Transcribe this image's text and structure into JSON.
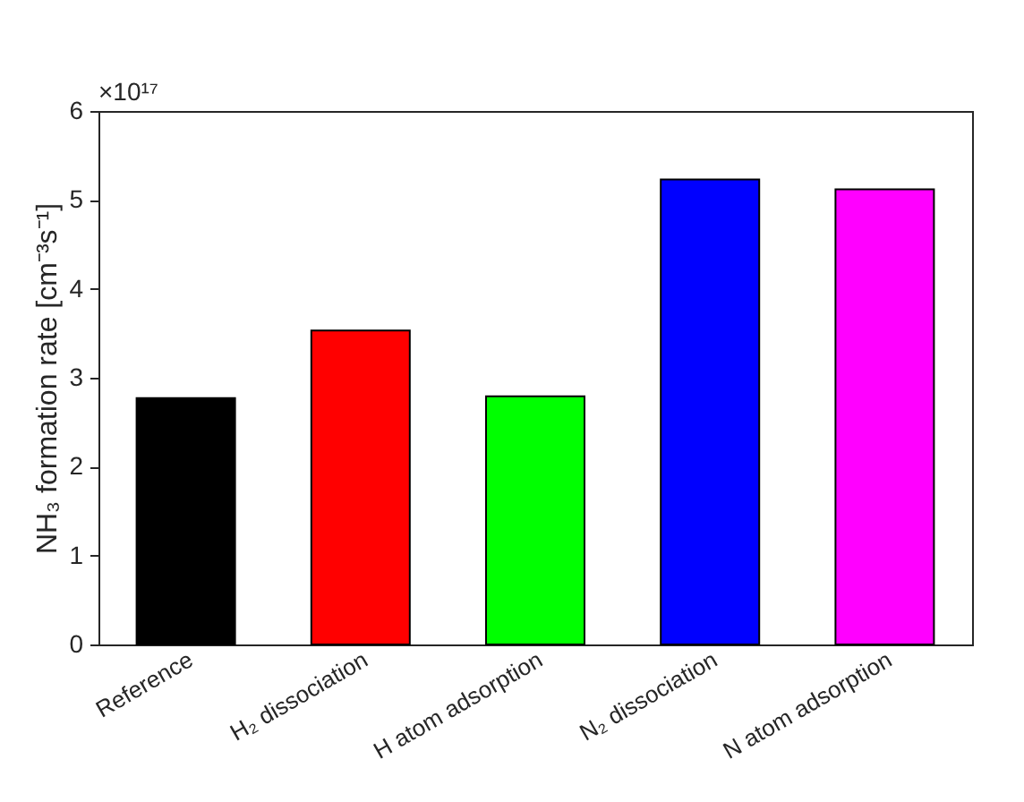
{
  "chart_data": {
    "type": "bar",
    "ylabel": "NH₃ formation rate [cm⁻³s⁻¹]",
    "categories": [
      "Reference",
      "H₂ dissociation",
      "H atom adsorption",
      "N₂ dissociation",
      "N atom adsorption"
    ],
    "values": [
      2.77,
      3.53,
      2.79,
      5.23,
      5.12
    ],
    "colors": [
      "#000000",
      "#ff0000",
      "#00ff00",
      "#0000ff",
      "#ff00ff"
    ],
    "ylim": [
      0,
      6
    ],
    "yticks": [
      0,
      1,
      2,
      3,
      4,
      5,
      6
    ],
    "grid": false,
    "annotations": [
      "×10¹⁷"
    ]
  }
}
